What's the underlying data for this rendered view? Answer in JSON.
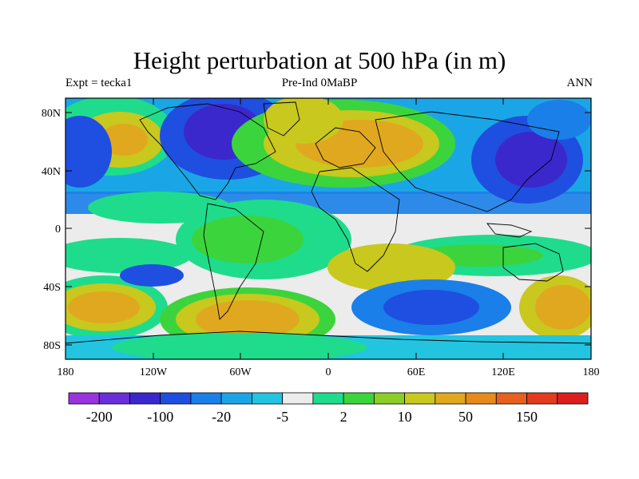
{
  "title": "Height perturbation at 500 hPa (in m)",
  "subtitle_left": "Expt = tecka1",
  "subtitle_center": "Pre-Ind 0MaBP",
  "subtitle_right": "ANN",
  "map": {
    "lat_ticks": [
      "80N",
      "40N",
      "0",
      "40S",
      "80S"
    ],
    "lon_ticks": [
      "180",
      "120W",
      "60W",
      "0",
      "60E",
      "120E",
      "180"
    ]
  },
  "colorbar": {
    "colors": [
      "#9933dd",
      "#6a2edb",
      "#3b28cc",
      "#1e4fe0",
      "#1a7fe8",
      "#1aa6e6",
      "#22c4e0",
      "#ececec",
      "#1edc8c",
      "#3cd43c",
      "#8ccd28",
      "#c8c81e",
      "#e0a81e",
      "#e68a1e",
      "#e6601e",
      "#e43a1e",
      "#dd1e1e"
    ],
    "labels": [
      "-200",
      "-100",
      "-20",
      "-5",
      "2",
      "10",
      "50",
      "150"
    ]
  }
}
